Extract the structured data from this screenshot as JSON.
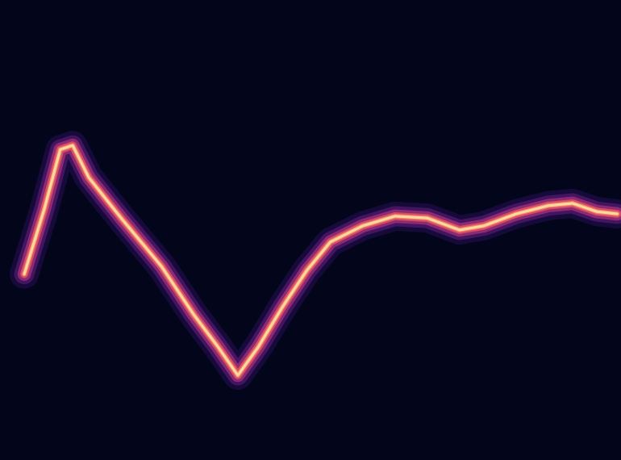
{
  "chart_data": {
    "type": "line",
    "x": [
      3.9,
      7.1,
      9.7,
      11.7,
      14.3,
      19.5,
      26.0,
      31.2,
      35.1,
      38.3,
      41.6,
      45.5,
      49.4,
      53.2,
      58.4,
      63.6,
      68.8,
      74.0,
      77.9,
      83.1,
      88.3,
      92.2,
      96.1,
      99.4
    ],
    "values": [
      40.4,
      54.4,
      67.5,
      68.4,
      61.4,
      52.6,
      42.1,
      31.6,
      24.6,
      18.4,
      24.6,
      33.3,
      41.2,
      47.4,
      50.9,
      53.0,
      52.6,
      50.0,
      50.9,
      53.5,
      55.3,
      55.8,
      54.0,
      53.5
    ],
    "color": "#fcd9a0",
    "xlim": [
      0,
      100
    ],
    "ylim": [
      0,
      100
    ],
    "xticks": [],
    "yticks": [],
    "tick_labels": false,
    "grid": false
  }
}
